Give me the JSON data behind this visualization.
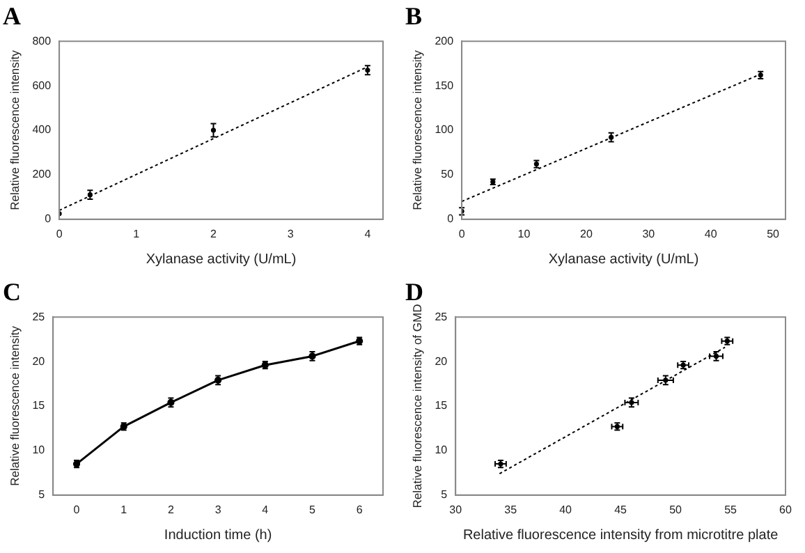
{
  "chart_data": [
    {
      "type": "scatter",
      "title": "A",
      "xlabel": "Xylanase activity (U/mL)",
      "ylabel": "Relative fluorescence intensity",
      "xlim": [
        0,
        4.2
      ],
      "xticks": [
        0,
        1,
        2,
        3,
        4
      ],
      "ylim": [
        0,
        800
      ],
      "yticks": [
        0,
        200,
        400,
        600,
        800
      ],
      "series": [
        {
          "color": "#000000",
          "marker": "circle",
          "x": [
            0,
            0.4,
            2,
            4
          ],
          "values": [
            25,
            110,
            400,
            670
          ],
          "errors": [
            null,
            20,
            30,
            20
          ]
        },
        {
          "type": "line",
          "color": "#000000",
          "line_style": "dotted",
          "x": [
            0,
            4
          ],
          "values": [
            40,
            685
          ]
        }
      ]
    },
    {
      "type": "scatter",
      "title": "B",
      "xlabel": "Xylanase activity (U/mL)",
      "ylabel": "Relative fluorescence intensity",
      "xlim": [
        0,
        52
      ],
      "xticks": [
        0,
        10,
        20,
        30,
        40,
        50
      ],
      "ylim": [
        0,
        200
      ],
      "yticks": [
        0,
        50,
        100,
        150,
        200
      ],
      "series": [
        {
          "color": "#000000",
          "marker": "circle",
          "x": [
            0,
            5,
            12,
            24,
            48
          ],
          "values": [
            9,
            42,
            62,
            92,
            162
          ],
          "errors": [
            4,
            3,
            4,
            5,
            4
          ]
        },
        {
          "type": "line",
          "color": "#000000",
          "line_style": "dotted",
          "x": [
            0,
            48
          ],
          "values": [
            20,
            163
          ]
        }
      ]
    },
    {
      "type": "line",
      "title": "C",
      "xlabel": "Induction time (h)",
      "ylabel": "Relative fluorescence intensity",
      "categories": [
        "0",
        "1",
        "2",
        "3",
        "4",
        "5",
        "6"
      ],
      "ylim": [
        5,
        25
      ],
      "yticks": [
        5,
        10,
        15,
        20,
        25
      ],
      "series": [
        {
          "color": "#000000",
          "marker": "circle",
          "line_style": "solid",
          "values": [
            8.5,
            12.7,
            15.4,
            17.9,
            19.6,
            20.6,
            22.3
          ],
          "errors": [
            0.4,
            0.4,
            0.5,
            0.5,
            0.4,
            0.5,
            0.4
          ]
        }
      ]
    },
    {
      "type": "scatter",
      "title": "D",
      "xlabel": "Relative fluorescence intensity from microtitre plate",
      "ylabel": "Relative fluorescence intensity of GMD",
      "xlim": [
        30,
        60
      ],
      "xticks": [
        30,
        35,
        40,
        45,
        50,
        55,
        60
      ],
      "ylim": [
        5,
        25
      ],
      "yticks": [
        5,
        10,
        15,
        20,
        25
      ],
      "series": [
        {
          "color": "#000000",
          "marker": "circle",
          "x": [
            34.1,
            44.7,
            46,
            49.1,
            50.7,
            53.7,
            54.7
          ],
          "values": [
            8.5,
            12.7,
            15.4,
            17.9,
            19.6,
            20.6,
            22.3
          ],
          "errors": [
            0.4,
            0.4,
            0.5,
            0.5,
            0.4,
            0.5,
            0.4
          ],
          "xerrors": [
            0.5,
            0.5,
            0.6,
            0.7,
            0.5,
            0.6,
            0.5
          ]
        },
        {
          "type": "line",
          "color": "#000000",
          "line_style": "dotted",
          "x": [
            34,
            54.5
          ],
          "values": [
            7.4,
            21.6
          ]
        }
      ]
    }
  ]
}
